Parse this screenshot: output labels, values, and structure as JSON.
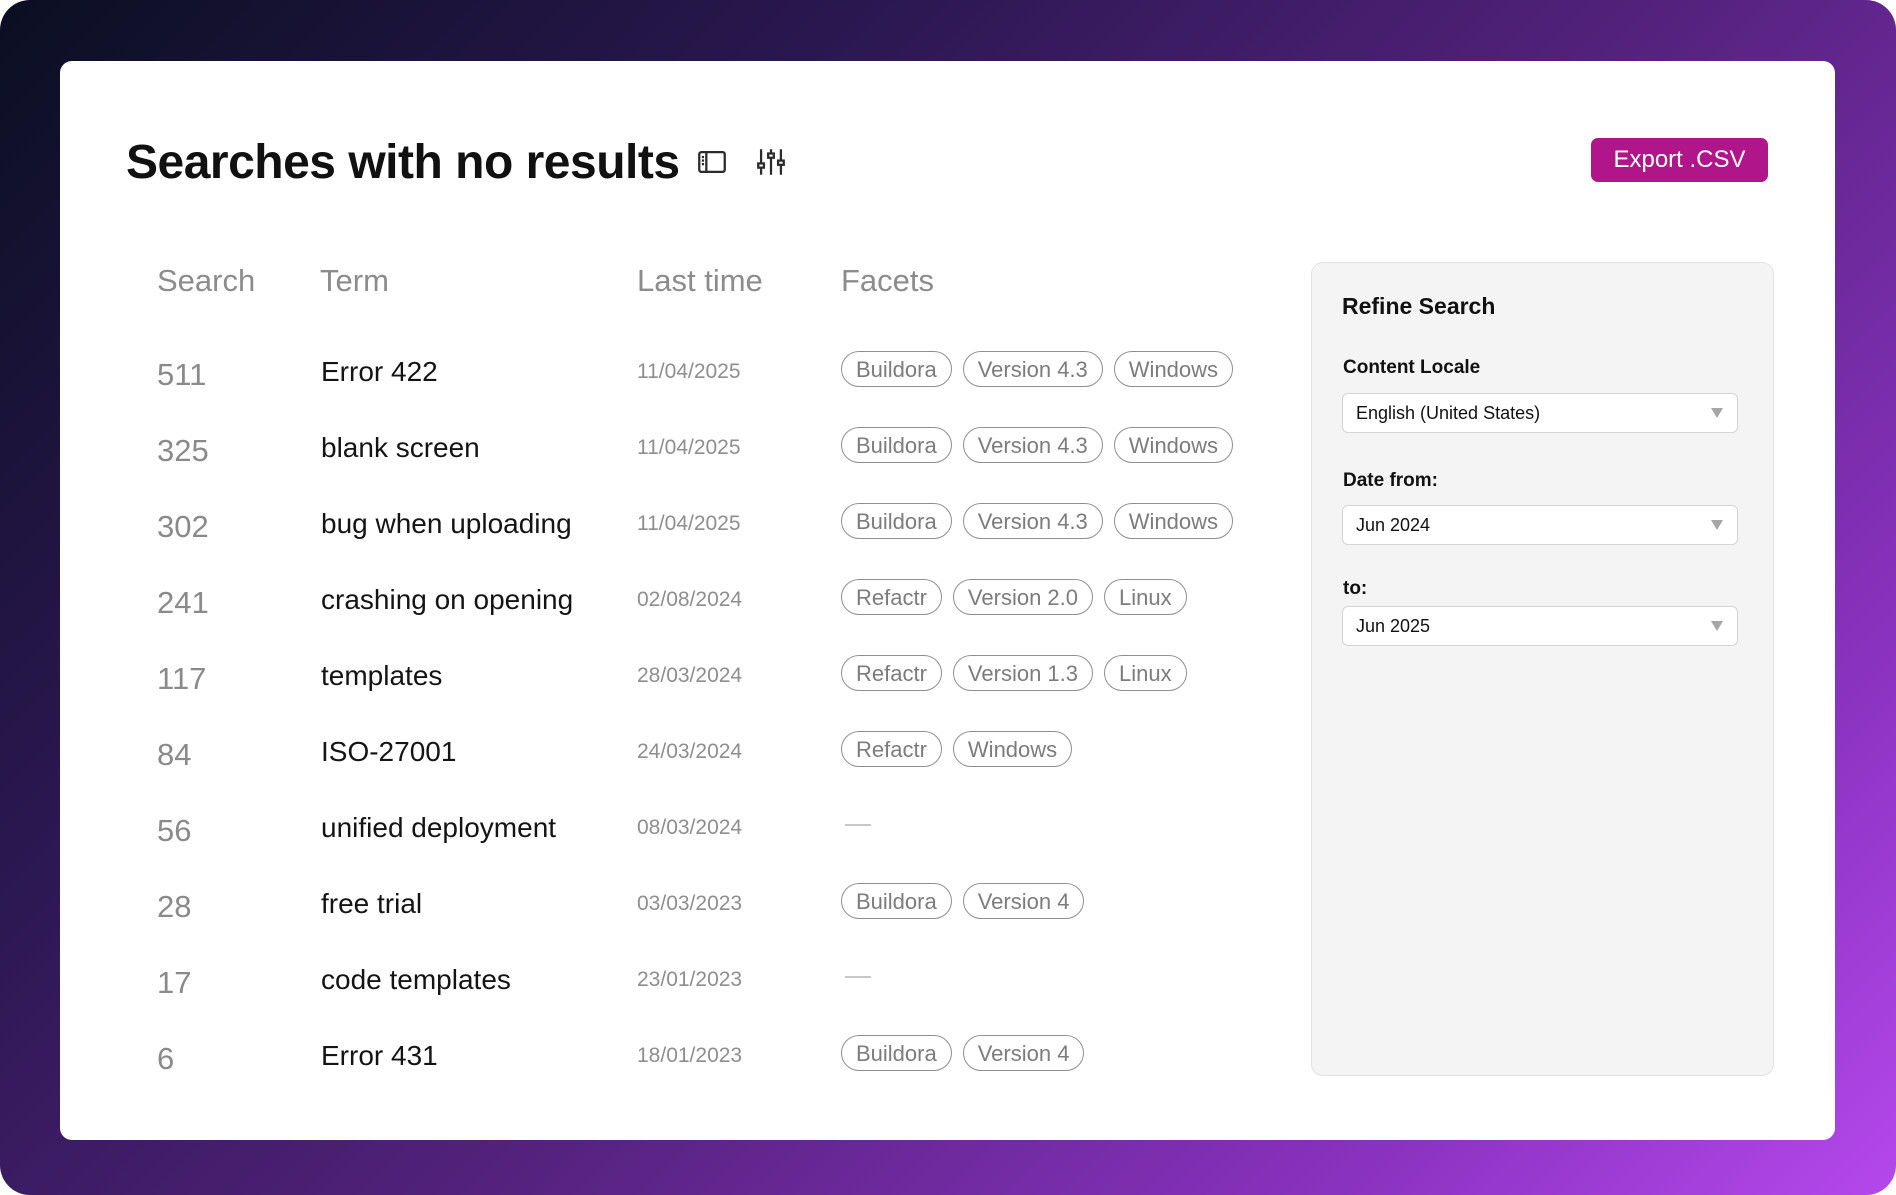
{
  "header": {
    "title": "Searches with no results",
    "export_label": "Export .CSV",
    "icons": [
      "sidebar-toggle-icon",
      "filter-sliders-icon"
    ]
  },
  "table": {
    "columns": [
      "Search",
      "Term",
      "Last time",
      "Facets"
    ],
    "rows": [
      {
        "count": "511",
        "term": "Error 422",
        "date": "11/04/2025",
        "facets": [
          "Buildora",
          "Version 4.3",
          "Windows"
        ]
      },
      {
        "count": "325",
        "term": "blank screen",
        "date": "11/04/2025",
        "facets": [
          "Buildora",
          "Version 4.3",
          "Windows"
        ]
      },
      {
        "count": "302",
        "term": "bug when uploading",
        "date": "11/04/2025",
        "facets": [
          "Buildora",
          "Version 4.3",
          "Windows"
        ]
      },
      {
        "count": "241",
        "term": "crashing on opening",
        "date": "02/08/2024",
        "facets": [
          "Refactr",
          "Version 2.0",
          "Linux"
        ]
      },
      {
        "count": "117",
        "term": "templates",
        "date": "28/03/2024",
        "facets": [
          "Refactr",
          "Version 1.3",
          "Linux"
        ]
      },
      {
        "count": "84",
        "term": "ISO-27001",
        "date": "24/03/2024",
        "facets": [
          "Refactr",
          "Windows"
        ]
      },
      {
        "count": "56",
        "term": "unified deployment",
        "date": "08/03/2024",
        "facets": []
      },
      {
        "count": "28",
        "term": "free trial",
        "date": "03/03/2023",
        "facets": [
          "Buildora",
          "Version 4"
        ]
      },
      {
        "count": "17",
        "term": "code templates",
        "date": "23/01/2023",
        "facets": []
      },
      {
        "count": "6",
        "term": "Error 431",
        "date": "18/01/2023",
        "facets": [
          "Buildora",
          "Version 4"
        ]
      }
    ]
  },
  "refine": {
    "title": "Refine Search",
    "locale_label": "Content Locale",
    "locale_value": "English (United States)",
    "date_from_label": "Date from:",
    "date_from_value": "Jun 2024",
    "date_to_label": "to:",
    "date_to_value": "Jun 2025"
  },
  "colors": {
    "accent": "#b0158a",
    "gradient_start": "#0b0f22",
    "gradient_end": "#b548ec"
  }
}
